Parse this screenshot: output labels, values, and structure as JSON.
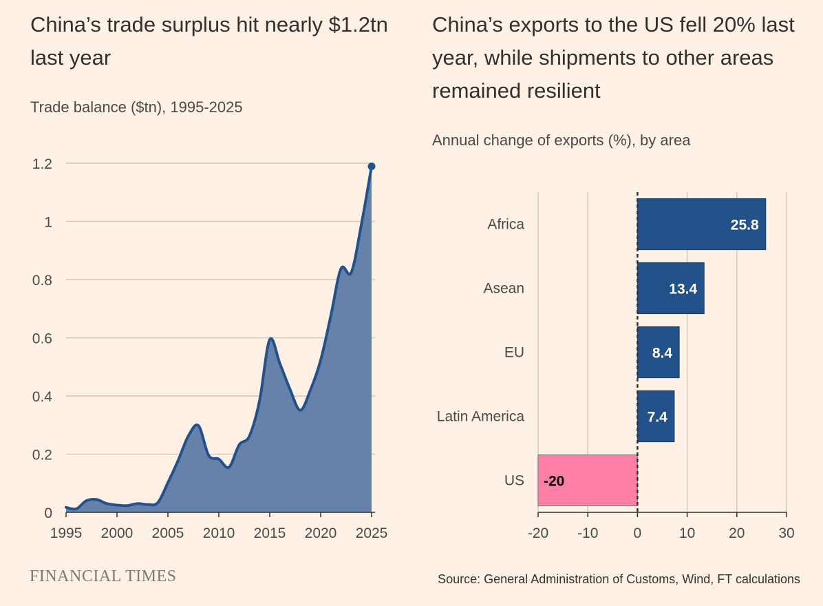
{
  "left_chart": {
    "title": "China’s trade surplus hit nearly $1.2tn last year",
    "subtitle": "Trade balance ($tn), 1995-2025"
  },
  "right_chart": {
    "title": "China’s exports to the US fell 20% last year, while shipments to other areas remained resilient",
    "subtitle": "Annual change of exports (%), by area"
  },
  "footer": {
    "brand": "FINANCIAL TIMES",
    "source": "Source: General Administration of Customs, Wind, FT calculations"
  },
  "colors": {
    "background": "#fff1e5",
    "line": "#23528a",
    "area_fill": "#6682aa",
    "bar_positive": "#23528a",
    "bar_negative": "#ff7fa8",
    "grid": "#d3c9c0"
  },
  "chart_data": [
    {
      "type": "area",
      "title": "China’s trade surplus hit nearly $1.2tn last year",
      "subtitle": "Trade balance ($tn), 1995-2025",
      "x": [
        1995,
        1996,
        1997,
        1998,
        1999,
        2000,
        2001,
        2002,
        2003,
        2004,
        2005,
        2006,
        2007,
        2008,
        2009,
        2010,
        2011,
        2012,
        2013,
        2014,
        2015,
        2016,
        2017,
        2018,
        2019,
        2020,
        2021,
        2022,
        2023,
        2024,
        2025
      ],
      "values": [
        0.017,
        0.012,
        0.04,
        0.044,
        0.03,
        0.025,
        0.023,
        0.03,
        0.027,
        0.033,
        0.102,
        0.178,
        0.262,
        0.298,
        0.196,
        0.183,
        0.155,
        0.232,
        0.262,
        0.384,
        0.594,
        0.511,
        0.422,
        0.351,
        0.421,
        0.523,
        0.676,
        0.838,
        0.824,
        0.99,
        1.189
      ],
      "xlim": [
        1995,
        2025
      ],
      "ylim": [
        0,
        1.2
      ],
      "yticks": [
        0,
        0.2,
        0.4,
        0.6,
        0.8,
        1,
        1.2
      ],
      "ytick_labels": [
        "0",
        "0.2",
        "0.4",
        "0.6",
        "0.8",
        "1",
        "1.2"
      ],
      "xticks": [
        1995,
        2000,
        2005,
        2010,
        2015,
        2020,
        2025
      ],
      "xtick_labels": [
        "1995",
        "2000",
        "2005",
        "2010",
        "2015",
        "2020",
        "2025"
      ],
      "grid": true,
      "endpoint_marker": true
    },
    {
      "type": "bar",
      "orientation": "horizontal",
      "title": "China’s exports to the US fell 20% last year, while shipments to other areas remained resilient",
      "subtitle": "Annual change of exports (%), by area",
      "categories": [
        "Africa",
        "Asean",
        "EU",
        "Latin America",
        "US"
      ],
      "values": [
        25.8,
        13.4,
        8.4,
        7.4,
        -20
      ],
      "value_labels": [
        "25.8",
        "13.4",
        "8.4",
        "7.4",
        "-20"
      ],
      "xlim": [
        -20,
        30
      ],
      "xticks": [
        -20,
        -10,
        0,
        10,
        20,
        30
      ],
      "xtick_labels": [
        "-20",
        "-10",
        "0",
        "10",
        "20",
        "30"
      ],
      "grid": true,
      "zero_line": "dashed"
    }
  ]
}
